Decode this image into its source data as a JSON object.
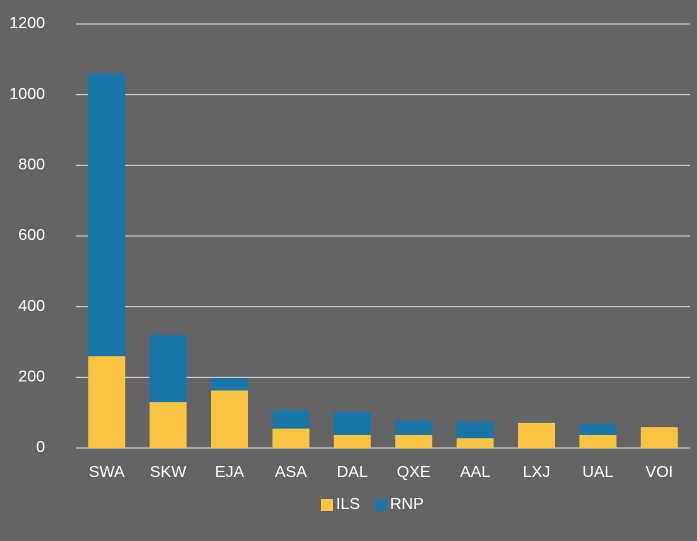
{
  "chart_data": {
    "type": "stacked_bar",
    "categories": [
      "SWA",
      "SKW",
      "EJA",
      "ASA",
      "DAL",
      "QXE",
      "AAL",
      "LXJ",
      "UAL",
      "VOI"
    ],
    "series": [
      {
        "name": "ILS",
        "color": "#fbc440",
        "values": [
          260,
          130,
          163,
          55,
          37,
          37,
          28,
          71,
          37,
          59
        ]
      },
      {
        "name": "RNP",
        "color": "#1a75a8",
        "values": [
          800,
          190,
          35,
          52,
          65,
          40,
          46,
          0,
          31,
          0
        ]
      }
    ],
    "ylim": [
      0,
      1200
    ],
    "yticks": [
      0,
      200,
      400,
      600,
      800,
      1000,
      1200
    ],
    "grid": true,
    "legend": "bottom"
  }
}
